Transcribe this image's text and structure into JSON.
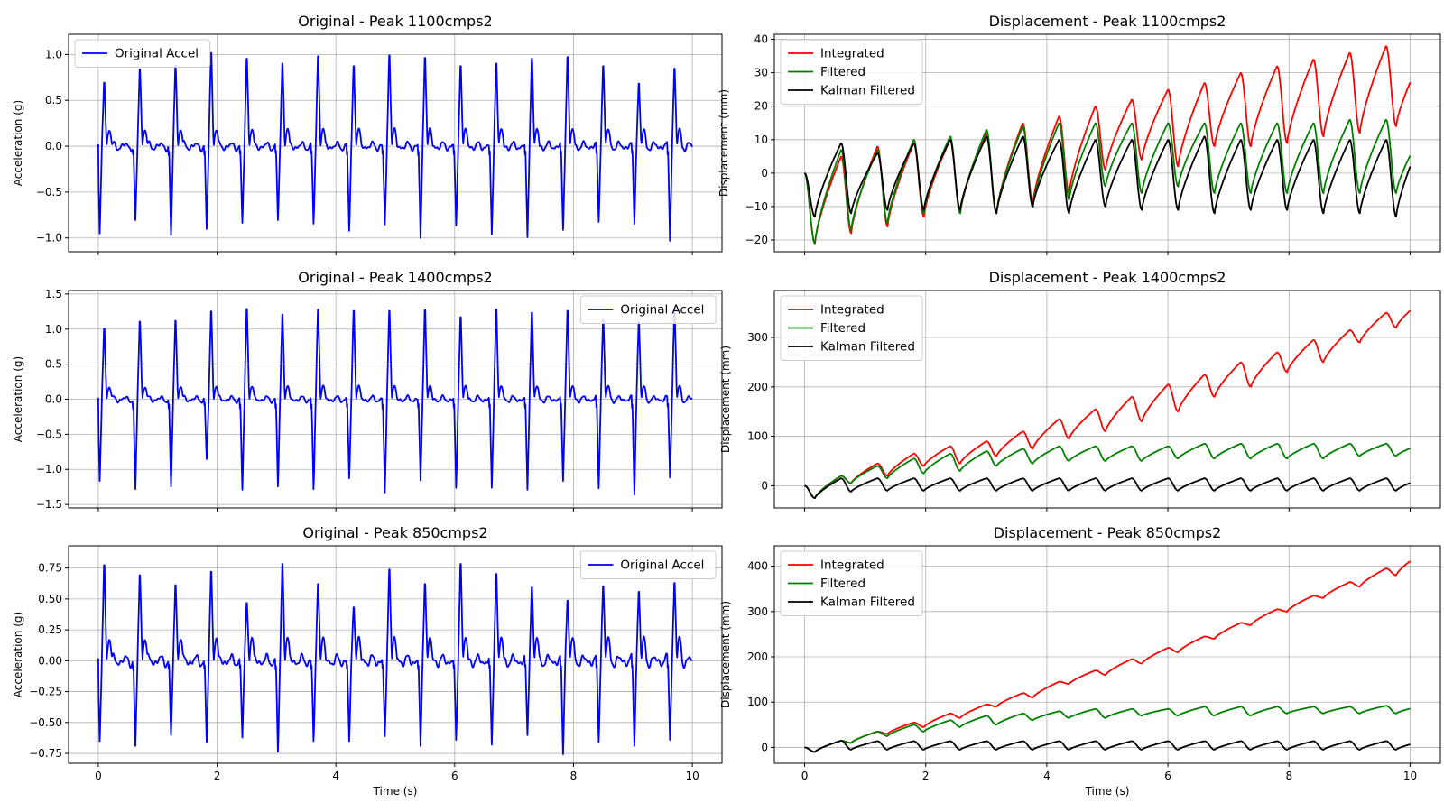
{
  "figure": {
    "columns": 2,
    "rows": 3
  },
  "chart_data": [
    {
      "panel": "accel-1100",
      "type": "line",
      "title": "Original - Peak 1100cmps2",
      "xlabel": "",
      "ylabel": "Acceleration (g)",
      "xlim": [
        -0.5,
        10.5
      ],
      "ylim": [
        -1.15,
        1.22
      ],
      "xticks": [
        0,
        2,
        4,
        6,
        8,
        10
      ],
      "xtick_labels_visible": false,
      "yticks": [
        -1.0,
        -0.5,
        0.0,
        0.5,
        1.0
      ],
      "ytick_labels": [
        "−1.0",
        "−0.5",
        "0.0",
        "0.5",
        "1.0"
      ],
      "grid": true,
      "legend": {
        "placement": "upper-left",
        "entries": [
          {
            "name": "Original Accel",
            "color": "#0000ff"
          }
        ]
      },
      "series": [
        {
          "name": "Original Accel",
          "color": "#0000ff",
          "style": "ecg",
          "beat_period_s": 0.6,
          "first_beat_s": 0.07,
          "duration_s": 10,
          "peaks": [
            0.77,
            0.93,
            0.98,
            1.13,
            1.06,
            1.0,
            1.09,
            0.97,
            1.1,
            1.07,
            0.97,
            1.0,
            1.06,
            1.08,
            0.97,
            0.76,
            0.94,
            1.04
          ],
          "troughs": [
            -0.98,
            -0.83,
            -1.0,
            -0.93,
            -0.86,
            -0.83,
            -0.87,
            -0.95,
            -0.88,
            -1.03,
            -0.89,
            -0.99,
            -1.02,
            -0.94,
            -0.85,
            -0.87,
            -1.06,
            -1.02
          ]
        }
      ]
    },
    {
      "panel": "disp-1100",
      "type": "line",
      "title": "Displacement - Peak 1100cmps2",
      "xlabel": "",
      "ylabel": "Displacement (mm)",
      "xlim": [
        -0.5,
        10.5
      ],
      "ylim": [
        -23.5,
        41.5
      ],
      "xticks": [
        0,
        2,
        4,
        6,
        8,
        10
      ],
      "xtick_labels_visible": false,
      "yticks": [
        -20,
        -10,
        0,
        10,
        20,
        30,
        40
      ],
      "ytick_labels": [
        "−20",
        "−10",
        "0",
        "10",
        "20",
        "30",
        "40"
      ],
      "grid": true,
      "legend": {
        "placement": "upper-left",
        "entries": [
          {
            "name": "Integrated",
            "color": "#ff0000"
          },
          {
            "name": "Filtered",
            "color": "#008000"
          },
          {
            "name": "Kalman Filtered",
            "color": "#000000"
          }
        ]
      },
      "series": [
        {
          "name": "Integrated",
          "color": "#ff0000",
          "style": "saw",
          "beat_period_s": 0.6,
          "first_beat_s": 0.17,
          "duration_s": 10,
          "start": 0,
          "end": 35,
          "mins": [
            -21,
            -18,
            -16,
            -13,
            -12,
            -12,
            -9,
            -6,
            1,
            4,
            2,
            8,
            8,
            9,
            11,
            12,
            14
          ],
          "maxs": [
            5,
            8,
            9,
            10,
            12,
            15,
            17,
            20,
            22,
            25,
            27,
            30,
            32,
            34,
            36,
            38,
            35
          ]
        },
        {
          "name": "Filtered",
          "color": "#008000",
          "style": "saw",
          "beat_period_s": 0.6,
          "first_beat_s": 0.17,
          "duration_s": 10,
          "start": 0,
          "end": 12,
          "mins": [
            -21,
            -17,
            -15,
            -12,
            -12,
            -12,
            -10,
            -8,
            -4,
            -6,
            -4,
            -6,
            -6,
            -6,
            -6,
            -6,
            -6
          ],
          "maxs": [
            7,
            7,
            10,
            11,
            13,
            14,
            15,
            15,
            15,
            15,
            15,
            15,
            15,
            15,
            16,
            16,
            12
          ]
        },
        {
          "name": "Kalman Filtered",
          "color": "#000000",
          "style": "saw",
          "beat_period_s": 0.6,
          "first_beat_s": 0.17,
          "duration_s": 10,
          "start": 0,
          "end": 11,
          "mins": [
            -13,
            -12,
            -11,
            -11,
            -11,
            -12,
            -10,
            -12,
            -10,
            -11,
            -11,
            -12,
            -11,
            -11,
            -12,
            -12,
            -13
          ],
          "maxs": [
            9,
            6,
            9,
            10,
            11,
            11,
            10,
            10,
            10,
            10,
            11,
            10,
            10,
            10,
            10,
            10,
            11
          ]
        }
      ]
    },
    {
      "panel": "accel-1400",
      "type": "line",
      "title": "Original - Peak 1400cmps2",
      "xlabel": "",
      "ylabel": "Acceleration (g)",
      "xlim": [
        -0.5,
        10.5
      ],
      "ylim": [
        -1.55,
        1.55
      ],
      "xticks": [
        0,
        2,
        4,
        6,
        8,
        10
      ],
      "xtick_labels_visible": false,
      "yticks": [
        -1.5,
        -1.0,
        -0.5,
        0.0,
        0.5,
        1.0,
        1.5
      ],
      "ytick_labels": [
        "−1.5",
        "−1.0",
        "−0.5",
        "0.0",
        "0.5",
        "1.0",
        "1.5"
      ],
      "grid": true,
      "legend": {
        "placement": "upper-right",
        "entries": [
          {
            "name": "Original Accel",
            "color": "#0000ff"
          }
        ]
      },
      "series": [
        {
          "name": "Original Accel",
          "color": "#0000ff",
          "style": "ecg",
          "beat_period_s": 0.6,
          "first_beat_s": 0.07,
          "duration_s": 10,
          "peaks": [
            1.12,
            1.23,
            1.24,
            1.39,
            1.43,
            1.34,
            1.42,
            1.4,
            1.4,
            1.41,
            1.3,
            1.42,
            1.37,
            1.4,
            1.25,
            1.23,
            1.44,
            0.93
          ],
          "troughs": [
            -1.2,
            -1.32,
            -1.28,
            -0.88,
            -1.33,
            -1.28,
            -1.32,
            -1.16,
            -1.37,
            -1.19,
            -1.3,
            -1.3,
            -1.33,
            -1.2,
            -1.31,
            -1.4,
            -1.15,
            -1.3
          ]
        }
      ]
    },
    {
      "panel": "disp-1400",
      "type": "line",
      "title": "Displacement - Peak 1400cmps2",
      "xlabel": "",
      "ylabel": "Displacement (mm)",
      "xlim": [
        -0.5,
        10.5
      ],
      "ylim": [
        -45,
        395
      ],
      "xticks": [
        0,
        2,
        4,
        6,
        8,
        10
      ],
      "xtick_labels_visible": false,
      "yticks": [
        0,
        100,
        200,
        300
      ],
      "ytick_labels": [
        "0",
        "100",
        "200",
        "300"
      ],
      "grid": true,
      "legend": {
        "placement": "upper-left",
        "entries": [
          {
            "name": "Integrated",
            "color": "#ff0000"
          },
          {
            "name": "Filtered",
            "color": "#008000"
          },
          {
            "name": "Kalman Filtered",
            "color": "#000000"
          }
        ]
      },
      "series": [
        {
          "name": "Integrated",
          "color": "#ff0000",
          "style": "ramp",
          "beat_period_s": 0.6,
          "first_beat_s": 0.17,
          "duration_s": 10,
          "start": 0,
          "end": 375,
          "dip": -25,
          "mins": [
            -25,
            5,
            20,
            40,
            45,
            60,
            75,
            95,
            110,
            130,
            150,
            180,
            200,
            230,
            250,
            290,
            320
          ],
          "maxs": [
            20,
            45,
            65,
            80,
            90,
            110,
            135,
            155,
            180,
            205,
            225,
            250,
            270,
            295,
            315,
            350,
            375
          ]
        },
        {
          "name": "Filtered",
          "color": "#008000",
          "style": "saw",
          "beat_period_s": 0.6,
          "first_beat_s": 0.17,
          "duration_s": 10,
          "start": 0,
          "end": 85,
          "mins": [
            -25,
            5,
            15,
            25,
            30,
            40,
            45,
            50,
            50,
            50,
            55,
            55,
            55,
            55,
            55,
            60,
            60
          ],
          "maxs": [
            20,
            40,
            55,
            65,
            70,
            75,
            80,
            80,
            80,
            80,
            85,
            85,
            85,
            85,
            85,
            85,
            85
          ]
        },
        {
          "name": "Kalman Filtered",
          "color": "#000000",
          "style": "saw",
          "beat_period_s": 0.6,
          "first_beat_s": 0.17,
          "duration_s": 10,
          "start": 0,
          "end": 15,
          "mins": [
            -25,
            -12,
            -10,
            -10,
            -10,
            -10,
            -10,
            -10,
            -10,
            -10,
            -10,
            -10,
            -10,
            -10,
            -10,
            -10,
            -10
          ],
          "maxs": [
            15,
            15,
            15,
            15,
            15,
            15,
            15,
            15,
            15,
            15,
            15,
            15,
            15,
            15,
            15,
            15,
            15
          ]
        }
      ]
    },
    {
      "panel": "accel-850",
      "type": "line",
      "title": "Original - Peak 850cmps2",
      "xlabel": "Time (s)",
      "ylabel": "Acceleration (g)",
      "xlim": [
        -0.5,
        10.5
      ],
      "ylim": [
        -0.83,
        0.93
      ],
      "xticks": [
        0,
        2,
        4,
        6,
        8,
        10
      ],
      "xtick_labels": [
        "0",
        "2",
        "4",
        "6",
        "8",
        "10"
      ],
      "xtick_labels_visible": true,
      "yticks": [
        -0.75,
        -0.5,
        -0.25,
        0.0,
        0.25,
        0.5,
        0.75
      ],
      "ytick_labels": [
        "−0.75",
        "−0.50",
        "−0.25",
        "0.00",
        "0.25",
        "0.50",
        "0.75"
      ],
      "grid": true,
      "legend": {
        "placement": "upper-right",
        "entries": [
          {
            "name": "Original Accel",
            "color": "#0000ff"
          }
        ]
      },
      "series": [
        {
          "name": "Original Accel",
          "color": "#0000ff",
          "style": "ecg",
          "beat_period_s": 0.6,
          "first_beat_s": 0.07,
          "duration_s": 10,
          "peaks": [
            0.86,
            0.77,
            0.68,
            0.8,
            0.52,
            0.87,
            0.69,
            0.48,
            0.82,
            0.69,
            0.87,
            0.78,
            0.66,
            0.54,
            0.67,
            0.62,
            0.7,
            0.7
          ],
          "troughs": [
            -0.67,
            -0.71,
            -0.62,
            -0.68,
            -0.64,
            -0.76,
            -0.67,
            -0.67,
            -0.63,
            -0.71,
            -0.66,
            -0.7,
            -0.62,
            -0.78,
            -0.68,
            -0.71,
            -0.66,
            -0.65
          ]
        }
      ]
    },
    {
      "panel": "disp-850",
      "type": "line",
      "title": "Displacement - Peak 850cmps2",
      "xlabel": "Time (s)",
      "ylabel": "Displacement (mm)",
      "xlim": [
        -0.5,
        10.5
      ],
      "ylim": [
        -35,
        445
      ],
      "xticks": [
        0,
        2,
        4,
        6,
        8,
        10
      ],
      "xtick_labels": [
        "0",
        "2",
        "4",
        "6",
        "8",
        "10"
      ],
      "xtick_labels_visible": true,
      "yticks": [
        0,
        100,
        200,
        300,
        400
      ],
      "ytick_labels": [
        "0",
        "100",
        "200",
        "300",
        "400"
      ],
      "grid": true,
      "legend": {
        "placement": "upper-left",
        "entries": [
          {
            "name": "Integrated",
            "color": "#ff0000"
          },
          {
            "name": "Filtered",
            "color": "#008000"
          },
          {
            "name": "Kalman Filtered",
            "color": "#000000"
          }
        ]
      },
      "series": [
        {
          "name": "Integrated",
          "color": "#ff0000",
          "style": "ramp",
          "beat_period_s": 0.6,
          "first_beat_s": 0.17,
          "duration_s": 10,
          "start": 0,
          "end": 430,
          "dip": -10,
          "mins": [
            -10,
            10,
            30,
            45,
            65,
            90,
            110,
            140,
            160,
            185,
            210,
            240,
            270,
            300,
            330,
            355,
            380
          ],
          "maxs": [
            15,
            35,
            55,
            75,
            95,
            120,
            145,
            170,
            195,
            220,
            245,
            275,
            305,
            335,
            365,
            395,
            430
          ]
        },
        {
          "name": "Filtered",
          "color": "#008000",
          "style": "saw",
          "beat_period_s": 0.6,
          "first_beat_s": 0.17,
          "duration_s": 10,
          "start": 0,
          "end": 92,
          "mins": [
            -10,
            10,
            25,
            35,
            45,
            50,
            60,
            65,
            65,
            70,
            70,
            70,
            70,
            75,
            75,
            75,
            75
          ],
          "maxs": [
            15,
            35,
            50,
            60,
            70,
            75,
            80,
            85,
            85,
            85,
            90,
            90,
            90,
            90,
            90,
            92,
            92
          ]
        },
        {
          "name": "Kalman Filtered",
          "color": "#000000",
          "style": "saw",
          "beat_period_s": 0.6,
          "first_beat_s": 0.17,
          "duration_s": 10,
          "start": 0,
          "end": 14,
          "mins": [
            -10,
            -5,
            -5,
            -5,
            -5,
            -5,
            -5,
            -5,
            -5,
            -5,
            -5,
            -5,
            -5,
            -5,
            -5,
            -5,
            -5
          ],
          "maxs": [
            15,
            14,
            14,
            14,
            14,
            14,
            14,
            14,
            14,
            14,
            14,
            14,
            14,
            14,
            14,
            14,
            14
          ]
        }
      ]
    }
  ]
}
